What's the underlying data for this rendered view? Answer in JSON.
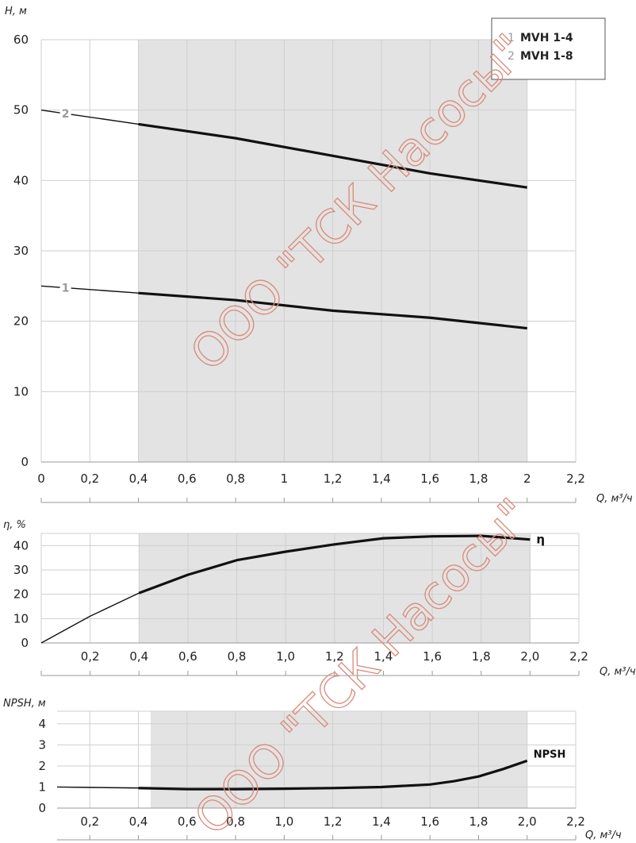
{
  "watermark": "ООО \"ТСК Насосы\"",
  "chart_data": [
    {
      "type": "line",
      "ylabel": "H, м",
      "xlabel": "Q, м³/ч",
      "xlim": [
        0,
        2.2
      ],
      "ylim": [
        0,
        60
      ],
      "xticks": [
        "0",
        "0,2",
        "0,4",
        "0,6",
        "0,8",
        "1",
        "1,2",
        "1,4",
        "1,6",
        "1,8",
        "2",
        "2,2"
      ],
      "yticks": [
        "0",
        "10",
        "20",
        "30",
        "40",
        "50",
        "60"
      ],
      "working_range": [
        0.4,
        2.0
      ],
      "legend": {
        "position": "top-right",
        "entries": [
          {
            "num": "1",
            "label": "MVH 1-4"
          },
          {
            "num": "2",
            "label": "MVH 1-8"
          }
        ]
      },
      "series": [
        {
          "name": "1",
          "x": [
            0,
            0.4,
            0.8,
            1.2,
            1.6,
            2.0
          ],
          "y": [
            25,
            24,
            23,
            21.5,
            20.5,
            19
          ]
        },
        {
          "name": "2",
          "x": [
            0,
            0.4,
            0.8,
            1.2,
            1.6,
            2.0
          ],
          "y": [
            50,
            48,
            46,
            43.5,
            41,
            39
          ]
        }
      ]
    },
    {
      "type": "line",
      "ylabel": "η, %",
      "xlabel": "Q, м³/ч",
      "xlim": [
        0,
        2.2
      ],
      "ylim": [
        0,
        45
      ],
      "xticks": [
        "0,2",
        "0,4",
        "0,6",
        "0,8",
        "1,0",
        "1,2",
        "1,4",
        "1,6",
        "1,8",
        "2,0",
        "2,2"
      ],
      "yticks": [
        "0",
        "10",
        "20",
        "30",
        "40"
      ],
      "working_range": [
        0.4,
        2.0
      ],
      "series": [
        {
          "name": "η",
          "x": [
            0,
            0.2,
            0.4,
            0.6,
            0.8,
            1.0,
            1.2,
            1.4,
            1.6,
            1.8,
            2.0
          ],
          "y": [
            0,
            11,
            20.5,
            28,
            34,
            37.5,
            40.5,
            43,
            43.8,
            44,
            42.5
          ]
        }
      ]
    },
    {
      "type": "line",
      "ylabel": "NPSH, м",
      "xlabel": "Q, м³/ч",
      "xlim": [
        0,
        2.2
      ],
      "ylim": [
        0,
        4.6
      ],
      "xticks": [
        "0,2",
        "0,4",
        "0,6",
        "0,8",
        "1,0",
        "1,2",
        "1,4",
        "1,6",
        "1,8",
        "2,0",
        "2,2"
      ],
      "yticks": [
        "0",
        "1",
        "2",
        "3",
        "4"
      ],
      "working_range": [
        0.4,
        2.0
      ],
      "series": [
        {
          "name": "NPSH",
          "x": [
            0,
            0.2,
            0.4,
            0.6,
            0.8,
            1.0,
            1.2,
            1.4,
            1.6,
            1.7,
            1.8,
            1.9,
            2.0
          ],
          "y": [
            1.0,
            0.98,
            0.95,
            0.9,
            0.9,
            0.92,
            0.95,
            1.0,
            1.12,
            1.28,
            1.5,
            1.85,
            2.25
          ]
        }
      ]
    }
  ]
}
